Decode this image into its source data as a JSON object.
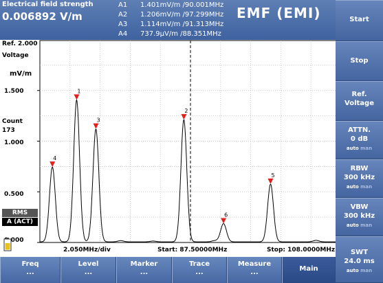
{
  "header": {
    "measurement_label": "Electrical field strength",
    "measurement_value": "0.006892 V/m",
    "mode_title": "EMF (EMI)",
    "markers": [
      {
        "name": "A1",
        "value": "1.401mV/m /90.001MHz"
      },
      {
        "name": "A2",
        "value": "1.206mV/m /97.299MHz"
      },
      {
        "name": "A3",
        "value": "1.114mV/m /91.313MHz"
      },
      {
        "name": "A4",
        "value": "737.9µV/m /88.351MHz"
      }
    ]
  },
  "plot": {
    "ref_label": "Ref. 2.000",
    "ref_unit": "Voltage",
    "y_unit": "mV/m",
    "count_label": "Count",
    "count_value": "173",
    "detector": "RMS",
    "trace_mode": "A (ACT)",
    "x_div": "2.050MHz/div",
    "start": "Start: 87.50000MHz",
    "stop": "Stop: 108.0000MHz"
  },
  "chart_data": {
    "type": "line",
    "xlabel": "",
    "ylabel": "mV/m",
    "xlim": [
      87.5,
      108.0
    ],
    "ylim": [
      0,
      2.0
    ],
    "y_tick_labels": [
      "1.500",
      "1.000",
      "0.500",
      "0.000"
    ],
    "y_ticks": [
      1.5,
      1.0,
      0.5,
      0.0
    ],
    "grid": true,
    "center_line_mhz": 97.75,
    "series": [
      {
        "peaks": [
          {
            "x": 88.351,
            "y": 0.738
          },
          {
            "x": 90.001,
            "y": 1.401
          },
          {
            "x": 91.313,
            "y": 1.114
          },
          {
            "x": 93.0,
            "y": 0.012
          },
          {
            "x": 95.2,
            "y": 0.008
          },
          {
            "x": 97.299,
            "y": 1.206
          },
          {
            "x": 99.4,
            "y": 0.012
          },
          {
            "x": 100.0,
            "y": 0.18
          },
          {
            "x": 103.2,
            "y": 0.57
          },
          {
            "x": 106.3,
            "y": 0.015
          }
        ]
      }
    ],
    "markers": [
      {
        "label": "1",
        "x": 90.001,
        "y": 1.401
      },
      {
        "label": "2",
        "x": 97.299,
        "y": 1.206
      },
      {
        "label": "3",
        "x": 91.313,
        "y": 1.114
      },
      {
        "label": "4",
        "x": 88.351,
        "y": 0.738
      },
      {
        "label": "5",
        "x": 103.2,
        "y": 0.57
      },
      {
        "label": "6",
        "x": 100.0,
        "y": 0.18
      }
    ],
    "colors": {
      "trace": "#000000",
      "marker": "#e0201c",
      "grid": "#b8b8b8"
    }
  },
  "softkeys": [
    {
      "label": "Start"
    },
    {
      "label": "Stop"
    },
    {
      "label": "Ref.",
      "label2": "Voltage"
    },
    {
      "label": "ATTN.",
      "label2": "0 dB",
      "auto": "auto",
      "man": "man"
    },
    {
      "label": "RBW",
      "label2": "300 kHz",
      "auto": "auto",
      "man": "man"
    },
    {
      "label": "VBW",
      "label2": "300 kHz",
      "auto": "auto",
      "man": "man"
    },
    {
      "label": "SWT",
      "label2": "24.0 ms",
      "auto": "auto",
      "man": "man"
    }
  ],
  "bottom_menu": [
    {
      "label": "Freq",
      "dots": "..."
    },
    {
      "label": "Level",
      "dots": "..."
    },
    {
      "label": "Marker",
      "dots": "..."
    },
    {
      "label": "Trace",
      "dots": "..."
    },
    {
      "label": "Measure",
      "dots": "..."
    },
    {
      "label": "Main",
      "dots": ""
    }
  ],
  "colors": {
    "header_bg": "#4a6ca8",
    "panel_bg": "#5574aa",
    "marker": "#e0201c"
  }
}
